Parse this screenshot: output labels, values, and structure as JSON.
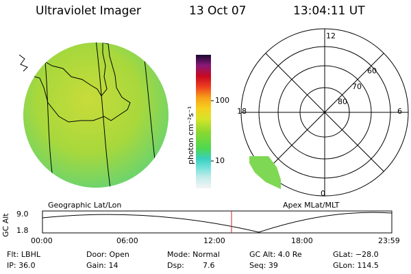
{
  "header": {
    "title": "Ultraviolet Imager",
    "date": "13 Oct 07",
    "time": "13:04:11 UT"
  },
  "colorbar": {
    "unit_label": "photon cm⁻²s⁻¹",
    "ticks": [
      "100",
      "10"
    ]
  },
  "polar_plot": {
    "mlt_labels": [
      "12",
      "18",
      "6",
      "0"
    ],
    "lat_labels": [
      "60",
      "70",
      "80"
    ]
  },
  "panels": {
    "left_caption": "Geographic Lat/Lon",
    "right_caption": "Apex MLat/MLT"
  },
  "altitude_plot": {
    "ylabel": "GC Alt",
    "ytick_top": "9.0",
    "ytick_bottom": "1.8",
    "xticks": [
      "00:00",
      "06:00",
      "12:00",
      "18:00",
      "23:59"
    ],
    "marker_color": "#cc2222"
  },
  "info": {
    "flt": "Flt: LBHL",
    "ip": "IP: 36.0",
    "door": "Door: Open",
    "gain": "Gain: 14",
    "mode": "Mode: Normal",
    "dsp_label": "Dsp:",
    "dsp_value": "7.6",
    "gc_alt": "GC Alt: 4.0 Re",
    "seq": "Seq: 39",
    "glat": "GLat: −28.0",
    "glon": "GLon: 114.5"
  },
  "colors": {
    "globe_fill": "#a6d83a",
    "globe_edge": "#6fd46a"
  }
}
